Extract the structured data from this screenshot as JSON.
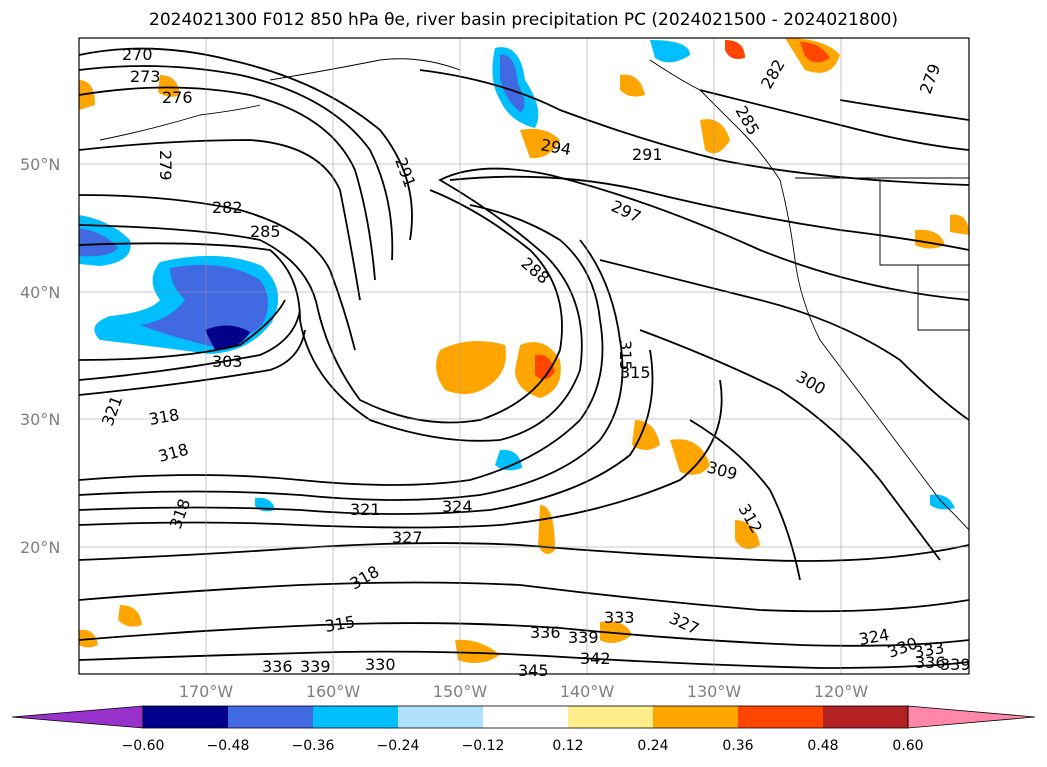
{
  "title": "2024021300 F012 850 hPa θe, river basin precipitation PC (2024021500 - 2024021800)",
  "latitude_labels": [
    "50°N",
    "40°N",
    "30°N",
    "20°N"
  ],
  "longitude_labels": [
    "170°W",
    "160°W",
    "150°W",
    "140°W",
    "130°W",
    "120°W"
  ],
  "contour_labels": [
    "270",
    "273",
    "276",
    "279",
    "282",
    "285",
    "291",
    "294",
    "288",
    "291",
    "297",
    "282",
    "285",
    "279",
    "300",
    "303",
    "315",
    "315",
    "318",
    "318",
    "321",
    "309",
    "312",
    "318",
    "321",
    "324",
    "327",
    "318",
    "315",
    "333",
    "336",
    "339",
    "342",
    "327",
    "324",
    "330",
    "333",
    "336",
    "339",
    "330",
    "336",
    "339",
    "345"
  ],
  "colorbar": {
    "ticks": [
      "−0.60",
      "−0.48",
      "−0.36",
      "−0.24",
      "−0.12",
      "0.12",
      "0.24",
      "0.36",
      "0.48",
      "0.60"
    ],
    "colors": [
      "#9932cc",
      "#00008b",
      "#4169e1",
      "#00bfff",
      "#b0e2ff",
      "#ffffff",
      "#ffec8b",
      "#ffa500",
      "#ff4500",
      "#b22222",
      "#ff88aa"
    ]
  }
}
